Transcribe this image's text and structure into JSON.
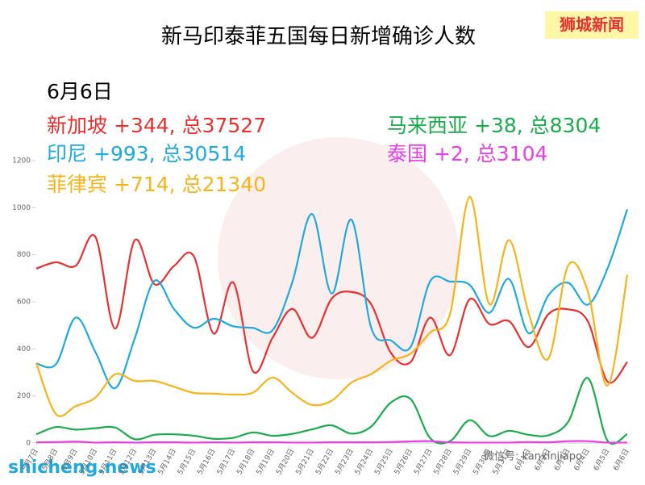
{
  "chart_data": {
    "type": "line",
    "title": "新马印泰菲五国每日新增确诊人数",
    "date_label": "6月6日",
    "badge": "狮城新闻",
    "footer_site": "shicheng.news",
    "footer_wechat": "微信号: kanxinjiapo",
    "categories": [
      "5月7日",
      "5月8日",
      "5月9日",
      "5月10日",
      "5月11日",
      "5月12日",
      "5月13日",
      "5月14日",
      "5月15日",
      "5月16日",
      "5月17日",
      "5月18日",
      "5月19日",
      "5月20日",
      "5月21日",
      "5月22日",
      "5月23日",
      "5月24日",
      "5月25日",
      "5月26日",
      "5月27日",
      "5月28日",
      "5月29日",
      "5月30日",
      "5月31日",
      "6月1日",
      "6月2日",
      "6月3日",
      "6月4日",
      "6月5日",
      "6月6日"
    ],
    "series": [
      {
        "name": "新加坡",
        "note": "+344, 总37527",
        "color": "#e8312f",
        "values": [
          741,
          768,
          753,
          876,
          486,
          862,
          675,
          753,
          793,
          465,
          682,
          305,
          448,
          570,
          447,
          614,
          642,
          590,
          383,
          344,
          533,
          373,
          611,
          506,
          518,
          408,
          548,
          568,
          517,
          261,
          344
        ]
      },
      {
        "name": "印尼",
        "note": "+993, 总30514",
        "color": "#1fa9e1",
        "values": [
          338,
          335,
          533,
          387,
          233,
          445,
          689,
          568,
          490,
          528,
          496,
          489,
          480,
          684,
          973,
          635,
          949,
          490,
          436,
          408,
          688,
          686,
          672,
          553,
          697,
          466,
          628,
          681,
          588,
          742,
          993
        ]
      },
      {
        "name": "菲律宾",
        "note": "+714, 总21340",
        "color": "#f6b419",
        "values": [
          339,
          123,
          157,
          193,
          292,
          264,
          264,
          239,
          213,
          210,
          206,
          214,
          278,
          213,
          162,
          180,
          257,
          293,
          350,
          380,
          470,
          548,
          1046,
          590,
          862,
          550,
          359,
          754,
          644,
          244,
          714
        ]
      },
      {
        "name": "马来西亚",
        "note": "+38, 总8304",
        "color": "#1aab4b",
        "values": [
          37,
          68,
          57,
          63,
          66,
          16,
          35,
          37,
          31,
          18,
          22,
          45,
          31,
          39,
          58,
          75,
          40,
          70,
          172,
          187,
          20,
          8,
          97,
          30,
          52,
          35,
          33,
          90,
          276,
          10,
          38
        ]
      },
      {
        "name": "泰国",
        "note": "+2, 总3104",
        "color": "#e83de8",
        "values": [
          3,
          4,
          6,
          2,
          3,
          2,
          3,
          3,
          2,
          3,
          2,
          3,
          3,
          2,
          2,
          3,
          3,
          3,
          4,
          7,
          8,
          3,
          2,
          2,
          2,
          4,
          3,
          8,
          8,
          2,
          2
        ]
      }
    ],
    "ylim": [
      0,
      1200
    ],
    "yticks": [
      0,
      200,
      400,
      600,
      800,
      1000,
      1200
    ]
  }
}
